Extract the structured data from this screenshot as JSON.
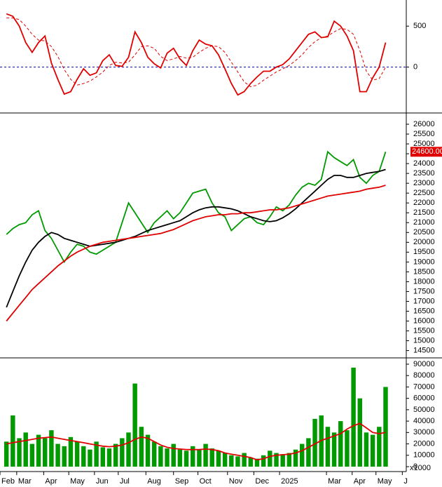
{
  "chart_data": [
    {
      "type": "line",
      "xlim": [
        -1,
        62
      ],
      "ylim": [
        -560,
        819
      ],
      "yticks": [
        0,
        500
      ],
      "reference_line": 0,
      "series": [
        {
          "color": "#e00000",
          "style": "solid",
          "values": [
            650,
            620,
            500,
            300,
            180,
            300,
            380,
            50,
            -150,
            -330,
            -300,
            -150,
            -20,
            -100,
            -70,
            80,
            150,
            20,
            10,
            120,
            430,
            300,
            120,
            40,
            -10,
            170,
            230,
            100,
            20,
            200,
            330,
            280,
            260,
            150,
            -20,
            -200,
            -340,
            -300,
            -200,
            -120,
            -50,
            -50,
            0,
            30,
            100,
            200,
            300,
            400,
            430,
            360,
            370,
            560,
            500,
            380,
            200,
            -300,
            -300,
            -130,
            0,
            300
          ]
        },
        {
          "color": "#e00000",
          "style": "dashed",
          "values": [
            600,
            600,
            580,
            500,
            400,
            330,
            320,
            250,
            130,
            -30,
            -150,
            -220,
            -200,
            -170,
            -120,
            -60,
            20,
            60,
            50,
            60,
            150,
            250,
            260,
            230,
            130,
            80,
            100,
            130,
            110,
            120,
            180,
            230,
            260,
            250,
            180,
            60,
            -60,
            -180,
            -240,
            -220,
            -160,
            -110,
            -60,
            -20,
            20,
            80,
            150,
            240,
            310,
            360,
            380,
            430,
            470,
            460,
            400,
            200,
            -50,
            -160,
            -140,
            0
          ]
        }
      ]
    },
    {
      "type": "line",
      "xlim": [
        -1,
        62
      ],
      "ylim": [
        14200,
        26500
      ],
      "yticks": [
        14500,
        15000,
        15500,
        16000,
        16500,
        17000,
        17500,
        18000,
        18500,
        19000,
        19500,
        20000,
        20500,
        21000,
        21500,
        22000,
        22500,
        23000,
        23500,
        24000,
        24500,
        25000,
        25500,
        26000
      ],
      "last_price": {
        "value": 24600,
        "label": "24600.00"
      },
      "series": [
        {
          "color": "#009900",
          "style": "solid",
          "values": [
            20400,
            20700,
            20900,
            21000,
            21400,
            21600,
            20600,
            20200,
            19600,
            19000,
            19500,
            19900,
            19800,
            19500,
            19400,
            19600,
            19800,
            20000,
            21000,
            22000,
            21500,
            21000,
            20500,
            21000,
            21300,
            21600,
            21200,
            21500,
            22000,
            22500,
            22600,
            22700,
            22000,
            21500,
            21300,
            20600,
            20900,
            21200,
            21300,
            21000,
            20900,
            21300,
            21800,
            21600,
            21900,
            22400,
            22800,
            23000,
            22900,
            23200,
            24600,
            24300,
            24100,
            23900,
            24200,
            23300,
            23000,
            23400,
            23600,
            24600
          ]
        },
        {
          "color": "#000000",
          "style": "solid",
          "values": [
            16700,
            17500,
            18300,
            19000,
            19600,
            20000,
            20300,
            20500,
            20400,
            20200,
            20100,
            20000,
            19900,
            19800,
            19850,
            19900,
            19950,
            20000,
            20100,
            20200,
            20300,
            20450,
            20600,
            20700,
            20800,
            20900,
            21000,
            21100,
            21300,
            21500,
            21650,
            21750,
            21800,
            21800,
            21750,
            21700,
            21600,
            21450,
            21300,
            21200,
            21100,
            21050,
            21100,
            21250,
            21450,
            21700,
            22000,
            22300,
            22600,
            22900,
            23200,
            23400,
            23400,
            23300,
            23300,
            23400,
            23500,
            23550,
            23600,
            23700
          ]
        },
        {
          "color": "#e00000",
          "style": "solid",
          "values": [
            16000,
            16400,
            16800,
            17200,
            17600,
            17900,
            18200,
            18500,
            18800,
            19050,
            19300,
            19500,
            19650,
            19800,
            19900,
            20000,
            20050,
            20100,
            20150,
            20200,
            20250,
            20300,
            20350,
            20400,
            20450,
            20550,
            20650,
            20800,
            20950,
            21100,
            21200,
            21300,
            21350,
            21400,
            21400,
            21450,
            21450,
            21500,
            21500,
            21550,
            21600,
            21650,
            21650,
            21700,
            21750,
            21850,
            21950,
            22050,
            22150,
            22250,
            22350,
            22400,
            22450,
            22500,
            22550,
            22600,
            22700,
            22750,
            22800,
            22900
          ]
        }
      ]
    },
    {
      "type": "bar",
      "xlim": [
        -1,
        62
      ],
      "ylim": [
        -4300,
        94300
      ],
      "yticks": [
        0,
        10000,
        20000,
        30000,
        40000,
        50000,
        60000,
        70000,
        80000,
        90000
      ],
      "unit_label": "x1000",
      "xticks": [
        {
          "value": -1,
          "label": "Feb"
        },
        {
          "value": 1.6,
          "label": "Mar"
        },
        {
          "value": 5.8,
          "label": "Apr"
        },
        {
          "value": 9.7,
          "label": "May"
        },
        {
          "value": 13.7,
          "label": "Jun"
        },
        {
          "value": 17.4,
          "label": "Jul"
        },
        {
          "value": 21.7,
          "label": "Aug"
        },
        {
          "value": 26,
          "label": "Sep"
        },
        {
          "value": 29.8,
          "label": "Oct"
        },
        {
          "value": 34.4,
          "label": "Nov"
        },
        {
          "value": 38.5,
          "label": "Dec"
        },
        {
          "value": 42.5,
          "label": "2025"
        },
        {
          "value": 49.8,
          "label": "Mar"
        },
        {
          "value": 53.8,
          "label": "Apr"
        },
        {
          "value": 57.5,
          "label": "May"
        },
        {
          "value": 61.6,
          "label": "J"
        }
      ],
      "series": [
        {
          "color": "#009900",
          "mark": "bar",
          "values": [
            22000,
            45000,
            25000,
            30000,
            20000,
            28000,
            25000,
            32000,
            20000,
            18000,
            26000,
            22000,
            18000,
            15000,
            22000,
            17000,
            16000,
            20000,
            25000,
            30000,
            73000,
            35000,
            28000,
            22000,
            18000,
            16000,
            20000,
            15000,
            14000,
            18000,
            15000,
            20000,
            16000,
            14000,
            12000,
            10000,
            9000,
            12000,
            8000,
            7000,
            10000,
            14000,
            12000,
            11000,
            12000,
            15000,
            20000,
            25000,
            42000,
            45000,
            35000,
            30000,
            40000,
            32000,
            87000,
            60000,
            30000,
            28000,
            35000,
            70000
          ]
        },
        {
          "color": "#e00000",
          "mark": "line",
          "values": [
            20000,
            21000,
            22000,
            23000,
            24000,
            25000,
            25500,
            26000,
            25000,
            24000,
            23000,
            22000,
            21000,
            20000,
            19000,
            18000,
            17500,
            18000,
            19000,
            21000,
            24000,
            26000,
            25000,
            22000,
            19000,
            17000,
            16000,
            15500,
            15000,
            15000,
            15000,
            15500,
            15000,
            14000,
            12000,
            11000,
            10000,
            9000,
            8000,
            6000,
            7000,
            9000,
            10000,
            10500,
            11000,
            12000,
            14000,
            17000,
            20000,
            23000,
            25000,
            27000,
            29000,
            33000,
            36000,
            38000,
            34000,
            30000,
            29000,
            30000
          ]
        }
      ]
    }
  ]
}
